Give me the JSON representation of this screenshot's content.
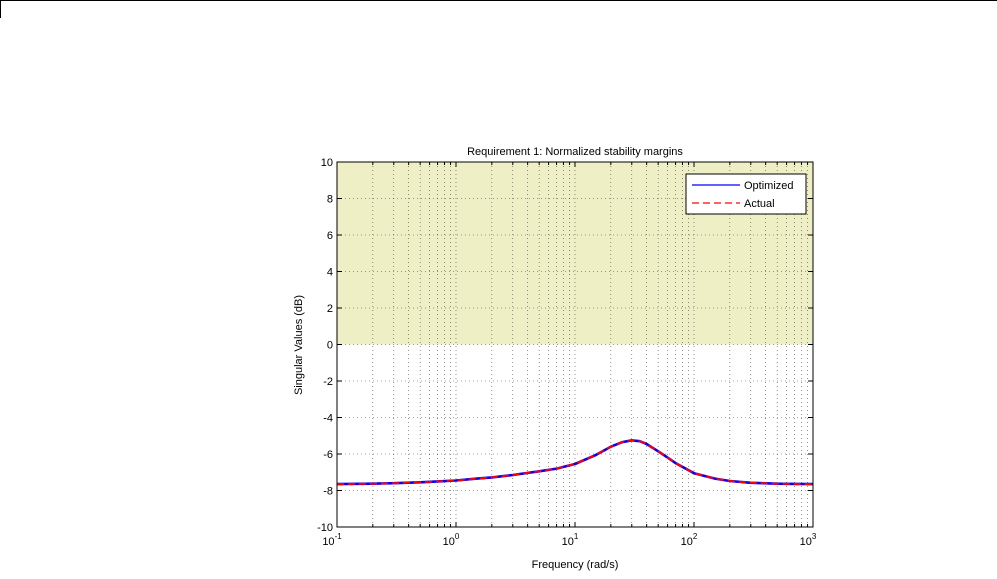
{
  "chart_data": {
    "type": "line",
    "title": "Requirement 1: Normalized stability margins",
    "xlabel": "Frequency (rad/s)",
    "ylabel": "Singular Values (dB)",
    "xscale": "log",
    "xlim": [
      0.1,
      1000
    ],
    "ylim": [
      -10,
      10
    ],
    "x_ticks": [
      {
        "value": 0.1,
        "base": "10",
        "exp": "-1"
      },
      {
        "value": 1,
        "base": "10",
        "exp": "0"
      },
      {
        "value": 10,
        "base": "10",
        "exp": "1"
      },
      {
        "value": 100,
        "base": "10",
        "exp": "2"
      },
      {
        "value": 1000,
        "base": "10",
        "exp": "3"
      }
    ],
    "y_ticks": [
      -10,
      -8,
      -6,
      -4,
      -2,
      0,
      2,
      4,
      6,
      8,
      10
    ],
    "grid": true,
    "legend_position": "top-right",
    "shaded_region": {
      "y_from": 0,
      "y_to": 10,
      "color": "#efefc6"
    },
    "series": [
      {
        "name": "Optimized",
        "style": "solid",
        "color": "#0000ff",
        "x": [
          0.1,
          0.2,
          0.3,
          0.5,
          0.7,
          1,
          1.5,
          2,
          3,
          5,
          7,
          10,
          15,
          20,
          25,
          30,
          35,
          40,
          50,
          60,
          70,
          100,
          150,
          200,
          300,
          500,
          700,
          1000
        ],
        "y": [
          -7.65,
          -7.63,
          -7.6,
          -7.55,
          -7.5,
          -7.45,
          -7.35,
          -7.28,
          -7.15,
          -6.95,
          -6.8,
          -6.55,
          -6.05,
          -5.6,
          -5.35,
          -5.25,
          -5.3,
          -5.45,
          -5.85,
          -6.2,
          -6.5,
          -7.05,
          -7.35,
          -7.48,
          -7.58,
          -7.63,
          -7.64,
          -7.65
        ]
      },
      {
        "name": "Actual",
        "style": "dashed",
        "color": "#ff0000",
        "x": [
          0.1,
          0.2,
          0.3,
          0.5,
          0.7,
          1,
          1.5,
          2,
          3,
          5,
          7,
          10,
          15,
          20,
          25,
          30,
          35,
          40,
          50,
          60,
          70,
          100,
          150,
          200,
          300,
          500,
          700,
          1000
        ],
        "y": [
          -7.65,
          -7.63,
          -7.6,
          -7.55,
          -7.5,
          -7.45,
          -7.35,
          -7.28,
          -7.15,
          -6.95,
          -6.8,
          -6.55,
          -6.05,
          -5.6,
          -5.35,
          -5.25,
          -5.3,
          -5.45,
          -5.85,
          -6.2,
          -6.5,
          -7.05,
          -7.35,
          -7.48,
          -7.58,
          -7.63,
          -7.64,
          -7.65
        ]
      }
    ]
  }
}
